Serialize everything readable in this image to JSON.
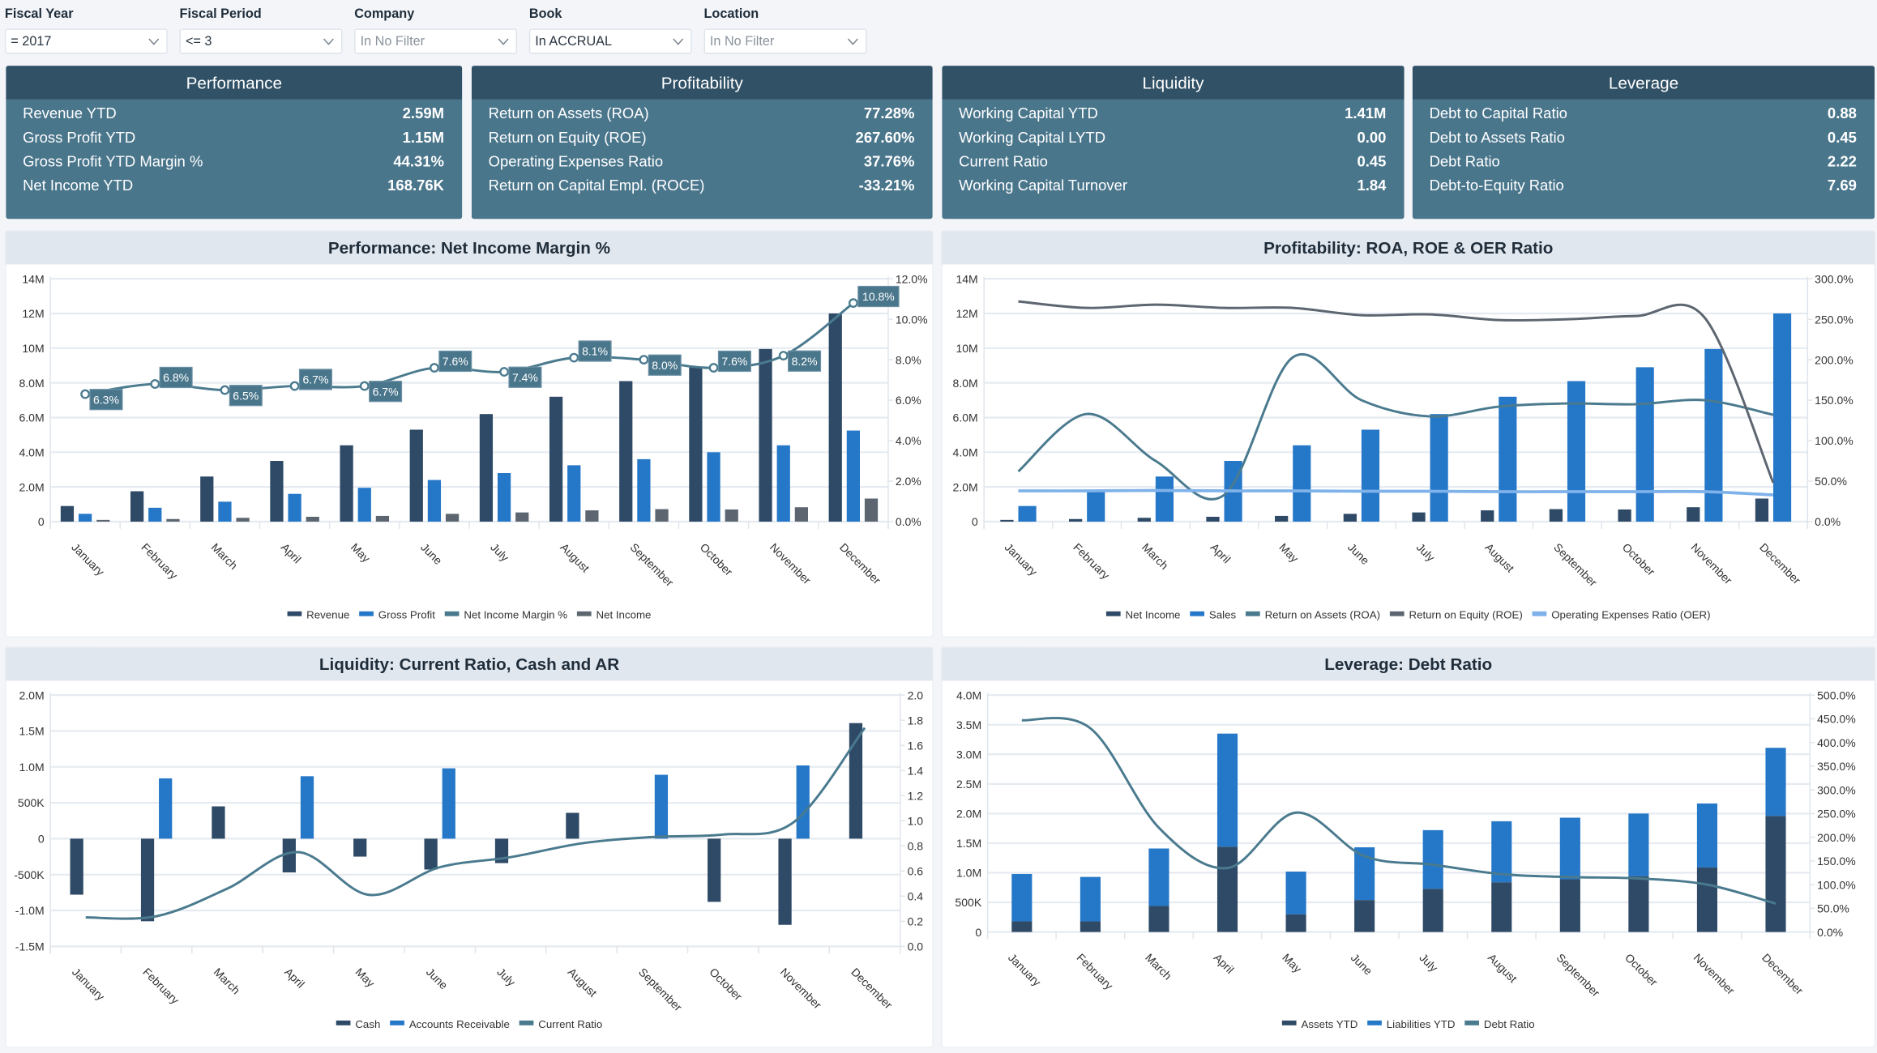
{
  "filters": [
    {
      "label": "Fiscal Year",
      "value": "= 2017",
      "placeholder": false
    },
    {
      "label": "Fiscal Period",
      "value": "<= 3",
      "placeholder": false
    },
    {
      "label": "Company",
      "value": "In No Filter",
      "placeholder": true
    },
    {
      "label": "Book",
      "value": "In ACCRUAL",
      "placeholder": false
    },
    {
      "label": "Location",
      "value": "In No Filter",
      "placeholder": true
    }
  ],
  "kpi_cards": [
    {
      "title": "Performance",
      "rows": [
        {
          "label": "Revenue YTD",
          "value": "2.59M"
        },
        {
          "label": "Gross Profit YTD",
          "value": "1.15M"
        },
        {
          "label": "Gross Profit YTD Margin %",
          "value": "44.31%"
        },
        {
          "label": "Net Income YTD",
          "value": "168.76K"
        }
      ]
    },
    {
      "title": "Profitability",
      "rows": [
        {
          "label": "Return on Assets (ROA)",
          "value": "77.28%"
        },
        {
          "label": "Return on Equity (ROE)",
          "value": "267.60%"
        },
        {
          "label": "Operating Expenses Ratio",
          "value": "37.76%"
        },
        {
          "label": "Return on Capital Empl. (ROCE)",
          "value": "-33.21%"
        }
      ]
    },
    {
      "title": "Liquidity",
      "rows": [
        {
          "label": "Working Capital YTD",
          "value": "1.41M"
        },
        {
          "label": "Working Capital LYTD",
          "value": "0.00"
        },
        {
          "label": "Current Ratio",
          "value": "0.45"
        },
        {
          "label": "Working Capital Turnover",
          "value": "1.84"
        }
      ]
    },
    {
      "title": "Leverage",
      "rows": [
        {
          "label": "Debt to Capital Ratio",
          "value": "0.88"
        },
        {
          "label": "Debt to Assets Ratio",
          "value": "0.45"
        },
        {
          "label": "Debt Ratio",
          "value": "2.22"
        },
        {
          "label": "Debt-to-Equity Ratio",
          "value": "7.69"
        }
      ]
    }
  ],
  "colors": {
    "navy": "#2f4a66",
    "blue": "#2577c8",
    "teal": "#4a7a8e",
    "grey": "#5d6670",
    "light_blue": "#7fb2ea",
    "kpi_header": "#315166",
    "kpi_body": "#4a768c"
  },
  "chart_data": [
    {
      "type": "bar+line",
      "title": "Performance: Net Income Margin %",
      "categories": [
        "January",
        "February",
        "March",
        "April",
        "May",
        "June",
        "July",
        "August",
        "September",
        "October",
        "November",
        "December"
      ],
      "ylim": [
        0,
        14
      ],
      "y_unit": "M",
      "y_tick_labels": [
        "0",
        "2.0M",
        "4.0M",
        "6.0M",
        "8.0M",
        "10M",
        "12M",
        "14M"
      ],
      "y2lim": [
        0,
        12
      ],
      "y2_tick_labels": [
        "0.0%",
        "2.0%",
        "4.0%",
        "6.0%",
        "8.0%",
        "10.0%",
        "12.0%"
      ],
      "stacked": false,
      "grid": true,
      "legend": "bottom",
      "series": [
        {
          "name": "Revenue",
          "kind": "bar",
          "axis": "left",
          "color": "#2f4a66",
          "values": [
            0.9,
            1.75,
            2.6,
            3.5,
            4.4,
            5.3,
            6.2,
            7.2,
            8.1,
            8.9,
            9.95,
            12.0
          ]
        },
        {
          "name": "Gross Profit",
          "kind": "bar",
          "axis": "left",
          "color": "#2577c8",
          "values": [
            0.45,
            0.8,
            1.15,
            1.6,
            1.95,
            2.4,
            2.8,
            3.25,
            3.6,
            4.0,
            4.4,
            5.25
          ]
        },
        {
          "name": "Net Income Margin %",
          "kind": "line",
          "axis": "right",
          "color": "#4a7a8e",
          "markers": true,
          "values": [
            6.3,
            6.8,
            6.5,
            6.7,
            6.7,
            7.6,
            7.4,
            8.1,
            8.0,
            7.6,
            8.2,
            10.8
          ],
          "data_labels": [
            "6.3%",
            "6.8%",
            "6.5%",
            "6.7%",
            "6.7%",
            "7.6%",
            "7.4%",
            "8.1%",
            "8.0%",
            "7.6%",
            "8.2%",
            "10.8%"
          ]
        },
        {
          "name": "Net Income",
          "kind": "bar",
          "axis": "left",
          "color": "#5d6670",
          "values": [
            0.1,
            0.15,
            0.22,
            0.28,
            0.33,
            0.45,
            0.53,
            0.65,
            0.72,
            0.7,
            0.83,
            1.33
          ]
        }
      ]
    },
    {
      "type": "bar+line",
      "title": "Profitability: ROA, ROE & OER Ratio",
      "categories": [
        "January",
        "February",
        "March",
        "April",
        "May",
        "June",
        "July",
        "August",
        "September",
        "October",
        "November",
        "December"
      ],
      "ylim": [
        0,
        14
      ],
      "y_unit": "M",
      "y_tick_labels": [
        "0",
        "2.0M",
        "4.0M",
        "6.0M",
        "8.0M",
        "10M",
        "12M",
        "14M"
      ],
      "y2lim": [
        0,
        300
      ],
      "y2_tick_labels": [
        "0.0%",
        "50.0%",
        "100.0%",
        "150.0%",
        "200.0%",
        "250.0%",
        "300.0%"
      ],
      "stacked": false,
      "grid": true,
      "legend": "bottom",
      "series": [
        {
          "name": "Net Income",
          "kind": "bar",
          "axis": "left",
          "color": "#2f4a66",
          "values": [
            0.1,
            0.15,
            0.22,
            0.28,
            0.33,
            0.45,
            0.53,
            0.65,
            0.72,
            0.7,
            0.83,
            1.33
          ]
        },
        {
          "name": "Sales",
          "kind": "bar",
          "axis": "left",
          "color": "#2577c8",
          "values": [
            0.9,
            1.75,
            2.6,
            3.5,
            4.4,
            5.3,
            6.2,
            7.2,
            8.1,
            8.9,
            9.95,
            12.0
          ]
        },
        {
          "name": "Return on Assets (ROA)",
          "kind": "line",
          "axis": "right",
          "color": "#4a7a8e",
          "values": [
            62,
            133,
            75,
            33,
            203,
            150,
            130,
            142,
            146,
            145,
            150,
            132
          ]
        },
        {
          "name": "Return on Equity (ROE)",
          "kind": "line",
          "axis": "right",
          "color": "#5d6670",
          "values": [
            272,
            264,
            268,
            264,
            264,
            255,
            256,
            249,
            250,
            254,
            252,
            48
          ]
        },
        {
          "name": "Operating Expenses Ratio (OER)",
          "kind": "line",
          "axis": "right",
          "color": "#7fb2ea",
          "values": [
            38,
            38,
            38.5,
            38,
            38,
            37.5,
            37.5,
            37,
            37,
            37,
            37,
            33
          ]
        }
      ]
    },
    {
      "type": "bar+line",
      "title": "Liquidity: Current Ratio, Cash and AR",
      "categories": [
        "January",
        "February",
        "March",
        "April",
        "May",
        "June",
        "July",
        "August",
        "September",
        "October",
        "November",
        "December"
      ],
      "ylim": [
        -1.5,
        2.0
      ],
      "y_unit": "M",
      "y_tick_labels": [
        "-1.5M",
        "-1.0M",
        "-500K",
        "0",
        "500K",
        "1.0M",
        "1.5M",
        "2.0M"
      ],
      "y2lim": [
        0,
        2.0
      ],
      "y2_tick_labels": [
        "0.0",
        "0.2",
        "0.4",
        "0.6",
        "0.8",
        "1.0",
        "1.2",
        "1.4",
        "1.6",
        "1.8",
        "2.0"
      ],
      "stacked": false,
      "grid": true,
      "legend": "bottom",
      "series": [
        {
          "name": "Cash",
          "kind": "bar",
          "axis": "left",
          "color": "#2f4a66",
          "values": [
            -0.78,
            -1.15,
            0.45,
            -0.47,
            -0.25,
            -0.43,
            -0.34,
            0.36,
            0,
            -0.88,
            -1.2,
            1.61
          ]
        },
        {
          "name": "Accounts Receivable",
          "kind": "bar",
          "axis": "left",
          "color": "#2577c8",
          "values": [
            0,
            0.84,
            0,
            0.87,
            0,
            0.98,
            0,
            0,
            0.89,
            0,
            1.02,
            0
          ]
        },
        {
          "name": "Current Ratio",
          "kind": "line",
          "axis": "right",
          "color": "#4a7a8e",
          "values": [
            0.23,
            0.24,
            0.46,
            0.75,
            0.41,
            0.63,
            0.71,
            0.82,
            0.87,
            0.89,
            0.99,
            1.74
          ]
        }
      ]
    },
    {
      "type": "stacked-bar+line",
      "title": "Leverage: Debt Ratio",
      "categories": [
        "January",
        "February",
        "March",
        "April",
        "May",
        "June",
        "July",
        "August",
        "September",
        "October",
        "November",
        "December"
      ],
      "ylim": [
        0,
        4.0
      ],
      "y_unit": "M",
      "y_tick_labels": [
        "0",
        "500K",
        "1.0M",
        "1.5M",
        "2.0M",
        "2.5M",
        "3.0M",
        "3.5M",
        "4.0M"
      ],
      "y2lim": [
        0,
        500
      ],
      "y2_tick_labels": [
        "0.0%",
        "50.0%",
        "100.0%",
        "150.0%",
        "200.0%",
        "250.0%",
        "300.0%",
        "350.0%",
        "400.0%",
        "450.0%",
        "500.0%"
      ],
      "stacked": true,
      "grid": true,
      "legend": "bottom",
      "series": [
        {
          "name": "Assets YTD",
          "kind": "bar",
          "axis": "left",
          "color": "#2f4a66",
          "values": [
            0.18,
            0.18,
            0.44,
            1.44,
            0.3,
            0.54,
            0.73,
            0.84,
            0.89,
            0.94,
            1.09,
            1.96
          ]
        },
        {
          "name": "Liabilities YTD",
          "kind": "bar",
          "axis": "left",
          "color": "#2577c8",
          "values": [
            0.8,
            0.75,
            0.97,
            1.91,
            0.72,
            0.89,
            0.99,
            1.03,
            1.04,
            1.06,
            1.08,
            1.15
          ]
        },
        {
          "name": "Debt Ratio",
          "kind": "line",
          "axis": "right",
          "color": "#4a7a8e",
          "values": [
            447,
            430,
            220,
            135,
            252,
            160,
            142,
            122,
            116,
            113,
            100,
            60
          ]
        }
      ]
    }
  ]
}
